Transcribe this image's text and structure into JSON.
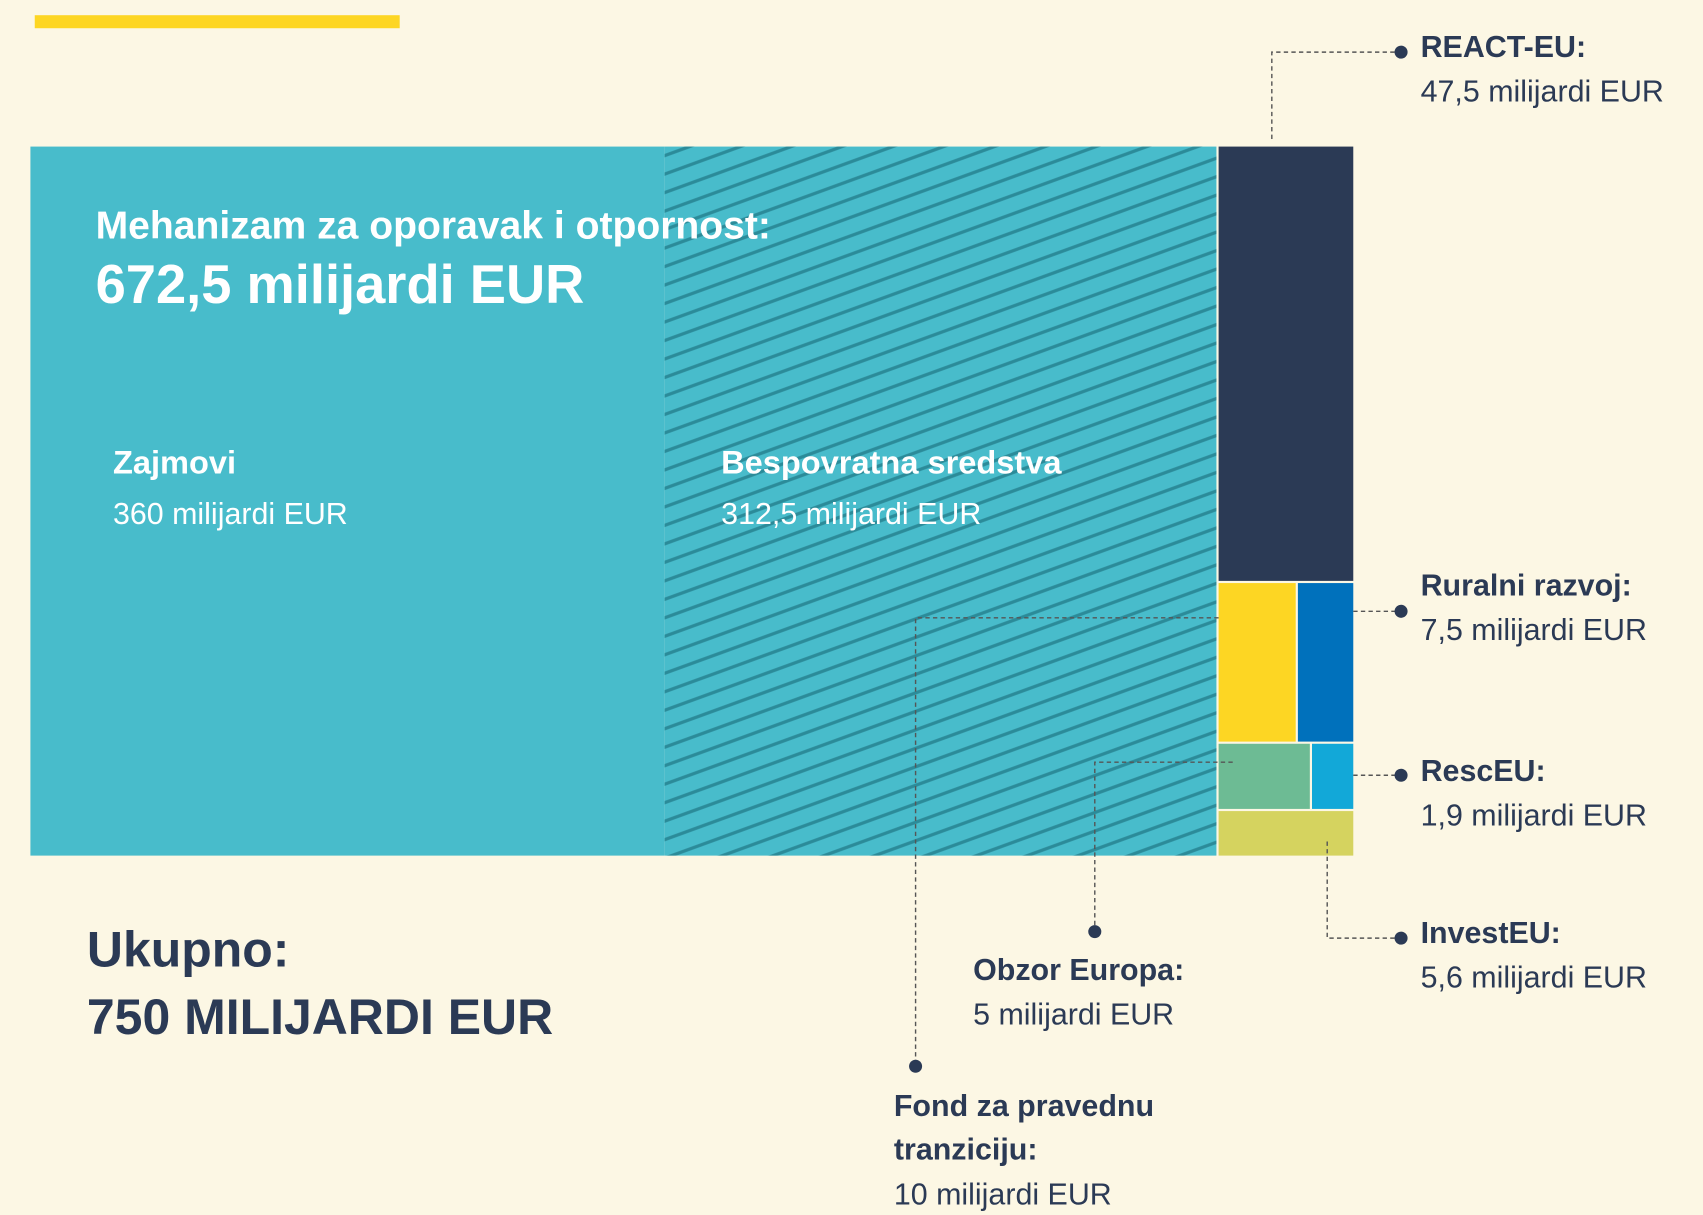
{
  "chart_data": {
    "type": "treemap",
    "total": {
      "name": "Ukupno:",
      "value": 750,
      "value_label": "750 MILIJARDI EUR"
    },
    "group": {
      "name": "Mehanizam za oporavak i otpornost:",
      "value": 672.5,
      "value_label": "672,5 milijardi EUR",
      "parts": [
        {
          "name": "Zajmovi",
          "value": 360,
          "value_label": "360 milijardi EUR",
          "color": "#48bccb"
        },
        {
          "name": "Bespovratna sredstva",
          "value": 312.5,
          "value_label": "312,5 milijardi EUR",
          "color": "#48bccb",
          "hatch": "#2b8b99"
        }
      ]
    },
    "items": [
      {
        "name": "REACT-EU:",
        "value": 47.5,
        "value_label": "47,5 milijardi EUR",
        "color": "#2b3a55"
      },
      {
        "name": "Fond za pravednu tranziciju:",
        "value": 10,
        "value_label": "10 milijardi EUR",
        "color": "#fdd623"
      },
      {
        "name": "Ruralni razvoj:",
        "value": 7.5,
        "value_label": "7,5 milijardi EUR",
        "color": "#0071bc"
      },
      {
        "name": "Obzor Europa:",
        "value": 5,
        "value_label": "5 milijardi EUR",
        "color": "#6dbb94"
      },
      {
        "name": "RescEU:",
        "value": 1.9,
        "value_label": "1,9 milijardi EUR",
        "color": "#12a8d8"
      },
      {
        "name": "InvestEU:",
        "value": 5.6,
        "value_label": "5,6 milijardi EUR",
        "color": "#d5d35f"
      }
    ]
  }
}
